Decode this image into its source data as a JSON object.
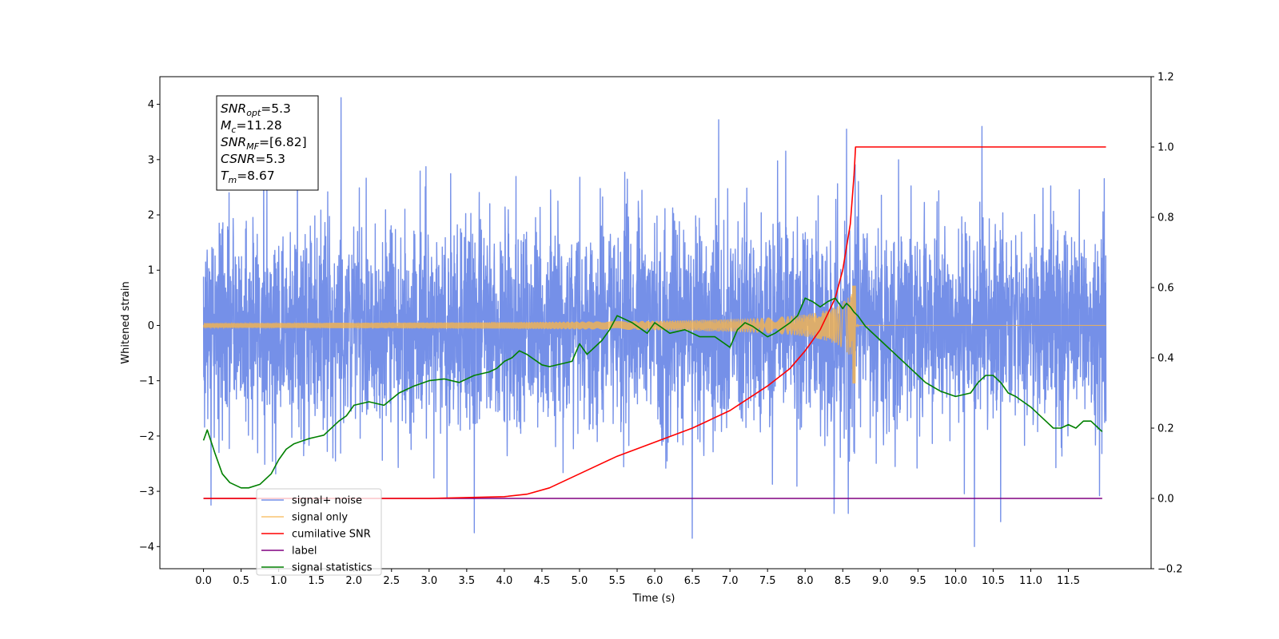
{
  "chart_data": {
    "type": "line",
    "xlabel": "Time (s)",
    "ylabel": "Whitened strain",
    "xlim": [
      -0.58,
      12.6
    ],
    "ylim": [
      -4.4,
      4.5
    ],
    "y2lim": [
      -0.2,
      1.2
    ],
    "x_ticks": [
      0.0,
      0.5,
      1.0,
      1.5,
      2.0,
      2.5,
      3.0,
      3.5,
      4.0,
      4.5,
      5.0,
      5.5,
      6.0,
      6.5,
      7.0,
      7.5,
      8.0,
      8.5,
      9.0,
      9.5,
      10.0,
      10.5,
      11.0,
      11.5
    ],
    "x_tick_labels": [
      "0.0",
      "0.5",
      "1.0",
      "1.5",
      "2.0",
      "2.5",
      "3.0",
      "3.5",
      "4.0",
      "4.5",
      "5.0",
      "5.5",
      "6.0",
      "6.5",
      "7.0",
      "7.5",
      "8.0",
      "8.5",
      "9.0",
      "9.5",
      "10.0",
      "10.5",
      "11.0",
      "11.5"
    ],
    "y_ticks": [
      -4,
      -3,
      -2,
      -1,
      0,
      1,
      2,
      3,
      4
    ],
    "y_tick_labels": [
      "−4",
      "−3",
      "−2",
      "−1",
      "0",
      "1",
      "2",
      "3",
      "4"
    ],
    "y2_ticks": [
      -0.2,
      0.0,
      0.2,
      0.4,
      0.6,
      0.8,
      1.0,
      1.2
    ],
    "y2_tick_labels": [
      "−0.2",
      "0.0",
      "0.2",
      "0.4",
      "0.6",
      "0.8",
      "1.0",
      "1.2"
    ],
    "grid": false,
    "legend_position": "lower-left",
    "stats_box": [
      {
        "sym": "SNR",
        "sub": "opt",
        "val": "=5.3"
      },
      {
        "sym": "M",
        "sub": "c",
        "val": "=11.28"
      },
      {
        "sym": "SNR",
        "sub": "MF",
        "val": "=[6.82]"
      },
      {
        "sym": "CSNR",
        "sub": "",
        "val": "=5.3"
      },
      {
        "sym": "T",
        "sub": "m",
        "val": "=8.67"
      }
    ],
    "series": [
      {
        "name": "signal+ noise",
        "axis": "left",
        "color": "#7590e8",
        "kind": "noise",
        "x_range": [
          0.0,
          12.0
        ],
        "approx_sigma": 0.95,
        "notable_peaks": [
          [
            1.83,
            4.12
          ],
          [
            1.25,
            3.65
          ],
          [
            6.85,
            3.72
          ],
          [
            8.55,
            3.55
          ],
          [
            10.35,
            3.6
          ],
          [
            3.6,
            -3.75
          ],
          [
            6.5,
            -3.85
          ],
          [
            10.25,
            -4.0
          ],
          [
            10.6,
            -3.55
          ],
          [
            0.1,
            -3.25
          ]
        ]
      },
      {
        "name": "signal only",
        "axis": "left",
        "color": "#f6b44c",
        "kind": "chirp",
        "x_range": [
          0.0,
          12.0
        ],
        "merger_time": 8.67,
        "peak_amplitude": [
          0.72,
          -1.05
        ]
      },
      {
        "name": "cumilative SNR",
        "axis": "right",
        "color": "#ff0000",
        "x": [
          0.0,
          3.0,
          4.0,
          4.3,
          4.6,
          5.0,
          5.5,
          6.0,
          6.5,
          7.0,
          7.5,
          7.8,
          8.0,
          8.2,
          8.4,
          8.5,
          8.6,
          8.65,
          8.67,
          9.0,
          10.0,
          11.0,
          12.0
        ],
        "y": [
          0.0,
          0.0,
          0.005,
          0.012,
          0.03,
          0.07,
          0.12,
          0.16,
          0.2,
          0.25,
          0.32,
          0.37,
          0.42,
          0.48,
          0.57,
          0.65,
          0.78,
          0.92,
          1.0,
          1.0,
          1.0,
          1.0,
          1.0
        ]
      },
      {
        "name": "label",
        "axis": "right",
        "color": "#800080",
        "x": [
          0.0,
          11.95
        ],
        "y": [
          0.0,
          0.0
        ]
      },
      {
        "name": "signal statistics",
        "axis": "right",
        "color": "#008000",
        "x": [
          0.0,
          0.05,
          0.15,
          0.25,
          0.35,
          0.5,
          0.6,
          0.75,
          0.9,
          1.0,
          1.1,
          1.2,
          1.4,
          1.5,
          1.6,
          1.8,
          1.9,
          2.0,
          2.2,
          2.4,
          2.6,
          2.8,
          3.0,
          3.2,
          3.4,
          3.6,
          3.8,
          3.9,
          4.0,
          4.1,
          4.2,
          4.3,
          4.5,
          4.6,
          4.8,
          4.9,
          5.0,
          5.1,
          5.3,
          5.4,
          5.5,
          5.7,
          5.9,
          6.0,
          6.2,
          6.4,
          6.6,
          6.8,
          7.0,
          7.1,
          7.2,
          7.3,
          7.4,
          7.5,
          7.6,
          7.8,
          7.9,
          8.0,
          8.1,
          8.2,
          8.3,
          8.4,
          8.5,
          8.55,
          8.6,
          8.65,
          8.7,
          8.8,
          9.0,
          9.2,
          9.4,
          9.6,
          9.8,
          10.0,
          10.2,
          10.3,
          10.4,
          10.5,
          10.6,
          10.7,
          10.8,
          11.0,
          11.2,
          11.3,
          11.4,
          11.5,
          11.6,
          11.7,
          11.8,
          11.9,
          11.95
        ],
        "y": [
          0.165,
          0.195,
          0.13,
          0.07,
          0.045,
          0.03,
          0.03,
          0.04,
          0.07,
          0.11,
          0.14,
          0.155,
          0.17,
          0.175,
          0.18,
          0.22,
          0.235,
          0.265,
          0.275,
          0.265,
          0.3,
          0.32,
          0.335,
          0.34,
          0.33,
          0.35,
          0.36,
          0.37,
          0.39,
          0.4,
          0.42,
          0.41,
          0.38,
          0.375,
          0.385,
          0.39,
          0.44,
          0.41,
          0.45,
          0.48,
          0.52,
          0.5,
          0.47,
          0.5,
          0.47,
          0.48,
          0.46,
          0.46,
          0.43,
          0.48,
          0.5,
          0.49,
          0.475,
          0.46,
          0.47,
          0.5,
          0.52,
          0.57,
          0.56,
          0.545,
          0.56,
          0.57,
          0.54,
          0.555,
          0.545,
          0.53,
          0.52,
          0.49,
          0.45,
          0.41,
          0.37,
          0.33,
          0.305,
          0.29,
          0.3,
          0.33,
          0.35,
          0.35,
          0.33,
          0.3,
          0.29,
          0.26,
          0.22,
          0.2,
          0.2,
          0.21,
          0.2,
          0.22,
          0.22,
          0.2,
          0.19
        ]
      }
    ]
  }
}
